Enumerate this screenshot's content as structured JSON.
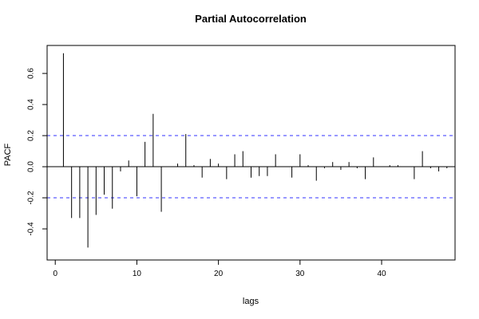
{
  "chart_data": {
    "type": "bar",
    "title": "Partial Autocorrelation",
    "xlabel": "lags",
    "ylabel": "PACF",
    "xlim": [
      -1,
      49
    ],
    "ylim": [
      -0.6,
      0.78
    ],
    "x_ticks": [
      0,
      10,
      20,
      30,
      40
    ],
    "y_ticks": [
      -0.4,
      -0.2,
      0.0,
      0.2,
      0.4,
      0.6
    ],
    "y_tick_labels": [
      "-0.4",
      "-0.2",
      "0.0",
      "0.2",
      "0.4",
      "0.6"
    ],
    "confidence_bound": 0.2,
    "grid": false,
    "lags": [
      1,
      2,
      3,
      4,
      5,
      6,
      7,
      8,
      9,
      10,
      11,
      12,
      13,
      14,
      15,
      16,
      17,
      18,
      19,
      20,
      21,
      22,
      23,
      24,
      25,
      26,
      27,
      28,
      29,
      30,
      31,
      32,
      33,
      34,
      35,
      36,
      37,
      38,
      39,
      40,
      41,
      42,
      43,
      44,
      45,
      46,
      47,
      48
    ],
    "values": [
      0.73,
      -0.33,
      -0.33,
      -0.52,
      -0.31,
      -0.18,
      -0.27,
      -0.03,
      0.04,
      -0.19,
      0.16,
      0.34,
      -0.29,
      0.0,
      0.02,
      0.21,
      0.01,
      -0.07,
      0.05,
      0.02,
      -0.08,
      0.08,
      0.1,
      -0.07,
      -0.06,
      -0.06,
      0.08,
      0.0,
      -0.07,
      0.08,
      0.01,
      -0.09,
      -0.01,
      0.03,
      -0.02,
      0.03,
      -0.01,
      -0.08,
      0.06,
      0.0,
      0.01,
      0.01,
      0.0,
      -0.08,
      0.1,
      -0.01,
      -0.03,
      -0.01
    ]
  }
}
